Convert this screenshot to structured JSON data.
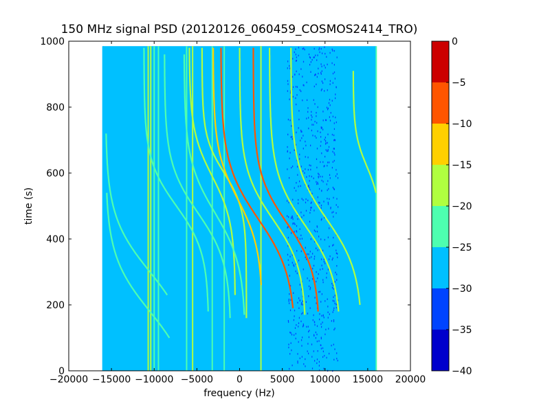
{
  "chart_data": {
    "type": "heatmap",
    "title": "150 MHz signal PSD (20120126_060459_COSMOS2414_TRO)",
    "xlabel": "frequency (Hz)",
    "ylabel": "time (s)",
    "xlim": [
      -20000,
      20000
    ],
    "ylim": [
      0,
      1000
    ],
    "x_ticks": [
      -20000,
      -15000,
      -10000,
      -5000,
      0,
      5000,
      10000,
      15000,
      20000
    ],
    "x_tick_labels": [
      "−20000",
      "−15000",
      "−10000",
      "−5000",
      "0",
      "5000",
      "10000",
      "15000",
      "20000"
    ],
    "y_ticks": [
      0,
      200,
      400,
      600,
      800,
      1000
    ],
    "y_tick_labels": [
      "0",
      "200",
      "400",
      "600",
      "800",
      "1000"
    ],
    "data_extent": {
      "x": [
        -16000,
        16000
      ],
      "y": [
        0,
        985
      ]
    },
    "background_level": -28,
    "colorbar": {
      "levels": [
        -40,
        -35,
        -30,
        -25,
        -20,
        -15,
        -10,
        -5,
        0
      ],
      "tick_labels": [
        "−40",
        "−35",
        "−30",
        "−25",
        "−20",
        "−15",
        "−10",
        "−5",
        "0"
      ],
      "colors": [
        "#0000cc",
        "#0044ff",
        "#00c0ff",
        "#4dffb0",
        "#b0ff40",
        "#ffd000",
        "#ff5500",
        "#cc0000"
      ]
    },
    "vertical_lines": [
      {
        "x": -16000,
        "level": -27
      },
      {
        "x": -10700,
        "level": -20
      },
      {
        "x": -10400,
        "level": -18
      },
      {
        "x": -10000,
        "level": -22
      },
      {
        "x": -9500,
        "level": -22
      },
      {
        "x": -6200,
        "level": -22
      },
      {
        "x": -5500,
        "level": -20
      },
      {
        "x": -3200,
        "level": -22
      },
      {
        "x": -1800,
        "level": -22
      },
      {
        "x": 2500,
        "level": -18
      },
      {
        "x": 16000,
        "level": -25
      }
    ],
    "doppler_curves": [
      {
        "center_x": -10500,
        "center_t": 180,
        "halfwidth_x": 5200,
        "scale_t": 170,
        "t_range": [
          100,
          540
        ],
        "level": -22
      },
      {
        "center_x": -10500,
        "center_t": 300,
        "halfwidth_x": 5200,
        "scale_t": 170,
        "t_range": [
          230,
          720
        ],
        "level": -22
      },
      {
        "center_x": -7400,
        "center_t": 500,
        "halfwidth_x": 3800,
        "scale_t": 140,
        "t_range": [
          180,
          980
        ],
        "level": -22
      },
      {
        "center_x": -4900,
        "center_t": 480,
        "halfwidth_x": 3900,
        "scale_t": 150,
        "t_range": [
          160,
          960
        ],
        "level": -24
      },
      {
        "center_x": -3200,
        "center_t": 590,
        "halfwidth_x": 2700,
        "scale_t": 140,
        "t_range": [
          230,
          980
        ],
        "level": -20
      },
      {
        "center_x": -2900,
        "center_t": 480,
        "halfwidth_x": 3600,
        "scale_t": 160,
        "t_range": [
          170,
          960
        ],
        "level": -22
      },
      {
        "center_x": -1800,
        "center_t": 600,
        "halfwidth_x": 2600,
        "scale_t": 110,
        "t_range": [
          160,
          980
        ],
        "level": -20
      },
      {
        "center_x": -200,
        "center_t": 520,
        "halfwidth_x": 2900,
        "scale_t": 150,
        "t_range": [
          260,
          980
        ],
        "level": -14
      },
      {
        "center_x": 2200,
        "center_t": 460,
        "halfwidth_x": 4400,
        "scale_t": 170,
        "t_range": [
          190,
          980
        ],
        "level": -8
      },
      {
        "center_x": 3900,
        "center_t": 460,
        "halfwidth_x": 3900,
        "scale_t": 150,
        "t_range": [
          170,
          980
        ],
        "level": -20
      },
      {
        "center_x": 5500,
        "center_t": 450,
        "halfwidth_x": 3900,
        "scale_t": 150,
        "t_range": [
          180,
          980
        ],
        "level": -8
      },
      {
        "center_x": 7700,
        "center_t": 440,
        "halfwidth_x": 4200,
        "scale_t": 160,
        "t_range": [
          180,
          980
        ],
        "level": -20
      },
      {
        "center_x": 10200,
        "center_t": 460,
        "halfwidth_x": 4200,
        "scale_t": 160,
        "t_range": [
          200,
          980
        ],
        "level": -20
      },
      {
        "center_x": 14900,
        "center_t": 620,
        "halfwidth_x": 1600,
        "scale_t": 100,
        "t_range": [
          200,
          910
        ],
        "level": -20
      }
    ],
    "noise_band": {
      "x": [
        5500,
        11500
      ],
      "density": 0.018
    }
  }
}
